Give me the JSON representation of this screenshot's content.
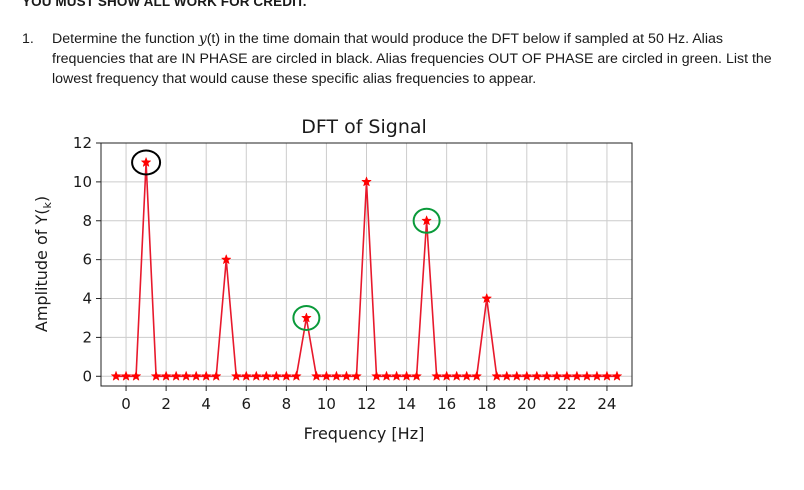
{
  "header": {
    "text": "YOU MUST SHOW ALL WORK FOR CREDIT."
  },
  "question": {
    "number": "1.",
    "part1": "Determine the function ",
    "math_y": "y",
    "math_t": "(t)",
    "part2": " in the time domain that would produce the DFT below if sampled at 50 Hz. Alias frequencies that are IN PHASE are circled in black. Alias frequencies OUT OF PHASE are circled in green. List the lowest frequency that would cause these specific alias frequencies to appear."
  },
  "colors": {
    "series": "#e8192c",
    "marker": "#ff0000",
    "in_phase_circle": "#000000",
    "out_of_phase_circle": "#0a9a3a",
    "grid": "#cccccc"
  },
  "chart_data": {
    "type": "line",
    "title": "DFT of Signal",
    "xlabel": "Frequency [Hz]",
    "ylabel": "Amplitude of Y(f_k)",
    "xlim": [
      -1.25,
      25.25
    ],
    "ylim": [
      -0.5,
      12
    ],
    "xticks": [
      0,
      2,
      4,
      6,
      8,
      10,
      12,
      14,
      16,
      18,
      20,
      22,
      24
    ],
    "yticks": [
      0,
      2,
      4,
      6,
      8,
      10,
      12
    ],
    "grid": true,
    "marker": "star",
    "x": [
      -0.5,
      0,
      0.5,
      1,
      1.5,
      2,
      2.5,
      3,
      3.5,
      4,
      4.5,
      5,
      5.5,
      6,
      6.5,
      7,
      7.5,
      8,
      8.5,
      9,
      9.5,
      10,
      10.5,
      11,
      11.5,
      12,
      12.5,
      13,
      13.5,
      14,
      14.5,
      15,
      15.5,
      16,
      16.5,
      17,
      17.5,
      18,
      18.5,
      19,
      19.5,
      20,
      20.5,
      21,
      21.5,
      22,
      22.5,
      23,
      23.5,
      24,
      24.5
    ],
    "y": [
      0,
      0,
      0,
      11,
      0,
      0,
      0,
      0,
      0,
      0,
      0,
      6,
      0,
      0,
      0,
      0,
      0,
      0,
      0,
      3,
      0,
      0,
      0,
      0,
      0,
      10,
      0,
      0,
      0,
      0,
      0,
      8,
      0,
      0,
      0,
      0,
      0,
      4,
      0,
      0,
      0,
      0,
      0,
      0,
      0,
      0,
      0,
      0,
      0,
      0,
      0
    ],
    "circled_in_phase": [
      1
    ],
    "circled_out_of_phase": [
      9,
      15
    ]
  }
}
